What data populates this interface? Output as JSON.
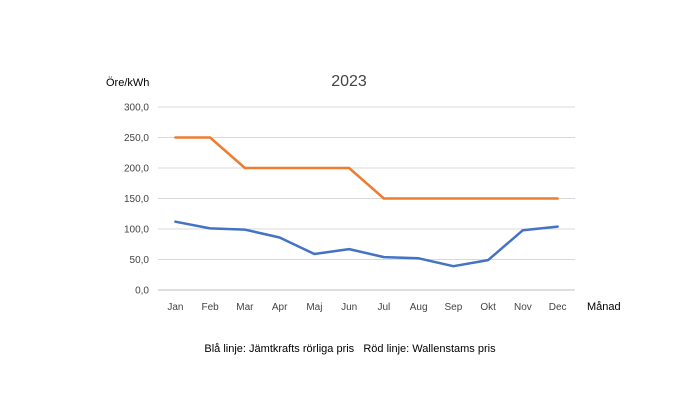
{
  "chart_data": {
    "type": "line",
    "title": "2023",
    "xlabel": "Månad",
    "ylabel": "Öre/kWh",
    "categories": [
      "Jan",
      "Feb",
      "Mar",
      "Apr",
      "Maj",
      "Jun",
      "Jul",
      "Aug",
      "Sep",
      "Okt",
      "Nov",
      "Dec"
    ],
    "ylim": [
      0,
      300
    ],
    "yticks": [
      "0,0",
      "50,0",
      "100,0",
      "150,0",
      "200,0",
      "250,0",
      "300,0"
    ],
    "grid": true,
    "series": [
      {
        "color": "#4472c4",
        "values": [
          112,
          101,
          99,
          86,
          59,
          67,
          54,
          52,
          39,
          49,
          98,
          104
        ]
      },
      {
        "color": "#ed7d31",
        "values": [
          250,
          250,
          200,
          200,
          200,
          200,
          150,
          150,
          150,
          150,
          150,
          150
        ]
      }
    ],
    "caption": "Blå linje: Jämtkrafts rörliga pris   Röd linje: Wallenstams pris"
  }
}
